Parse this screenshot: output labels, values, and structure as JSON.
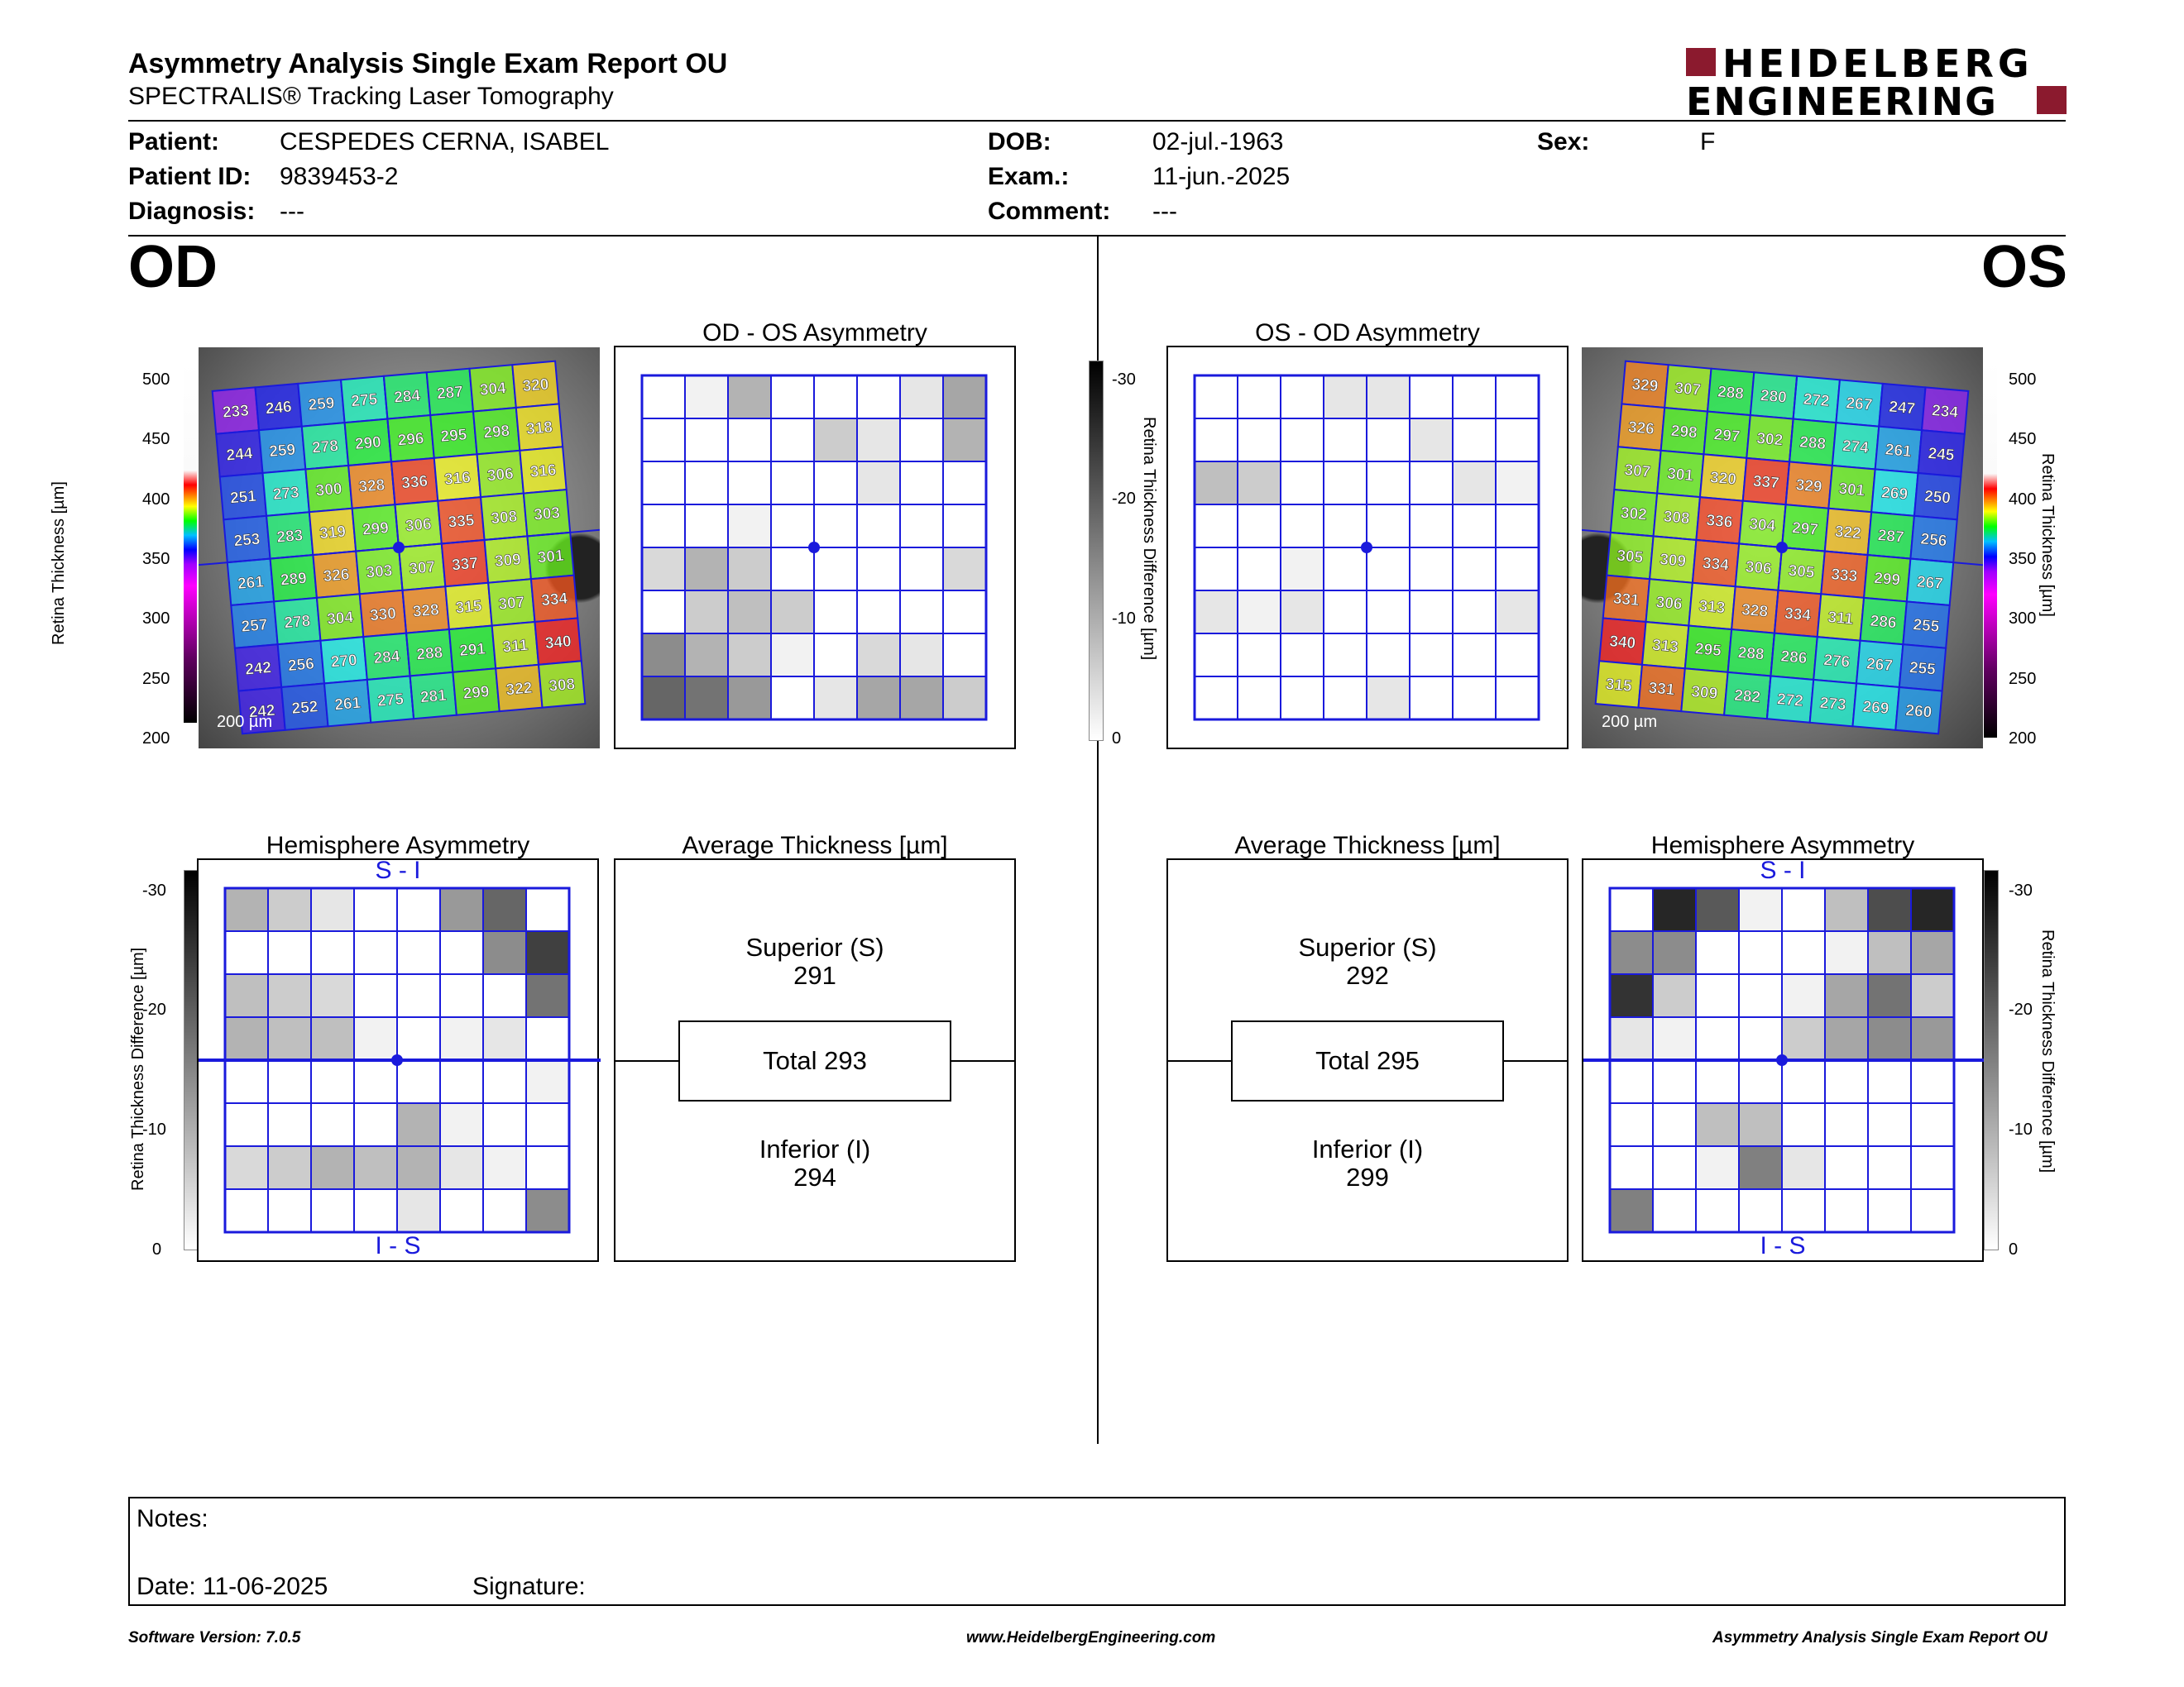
{
  "report": {
    "title": "Asymmetry Analysis Single Exam Report OU",
    "subtitle": "SPECTRALIS® Tracking Laser Tomography",
    "logo_line1": "HEIDELBERG",
    "logo_line2": "ENGINEERING"
  },
  "patient": {
    "patient_label": "Patient:",
    "patient_value": "CESPEDES CERNA, ISABEL",
    "id_label": "Patient ID:",
    "id_value": "9839453-2",
    "diagnosis_label": "Diagnosis:",
    "diagnosis_value": "---",
    "dob_label": "DOB:",
    "dob_value": "02-jul.-1963",
    "exam_label": "Exam.:",
    "exam_value": "11-jun.-2025",
    "comment_label": "Comment:",
    "comment_value": "---",
    "sex_label": "Sex:",
    "sex_value": "F"
  },
  "od": {
    "eye_label": "OD",
    "asym_title": "OD - OS Asymmetry",
    "hemi_title": "Hemisphere Asymmetry",
    "avg_title": "Average Thickness [µm]",
    "superior_label": "Superior (S)",
    "superior_value": "291",
    "total_label": "Total 293",
    "inferior_label": "Inferior (I)",
    "inferior_value": "294",
    "hemi_top": "S - I",
    "hemi_bottom": "I - S",
    "scale_label": "200 µm",
    "thickness_grid": [
      [
        233,
        246,
        259,
        275,
        284,
        287,
        304,
        320
      ],
      [
        244,
        259,
        278,
        290,
        296,
        295,
        298,
        318
      ],
      [
        251,
        273,
        300,
        328,
        336,
        316,
        306,
        316
      ],
      [
        253,
        283,
        319,
        299,
        306,
        335,
        308,
        303
      ],
      [
        261,
        289,
        326,
        303,
        307,
        337,
        309,
        301
      ],
      [
        257,
        278,
        304,
        330,
        328,
        315,
        307,
        334
      ],
      [
        242,
        256,
        270,
        284,
        288,
        291,
        311,
        340
      ],
      [
        242,
        252,
        261,
        275,
        281,
        299,
        322,
        308
      ]
    ],
    "asym_grid": [
      [
        0,
        0.05,
        0.3,
        0,
        0,
        0,
        0.1,
        0.35
      ],
      [
        0,
        0,
        0,
        0,
        0.2,
        0.1,
        0,
        0.3
      ],
      [
        0,
        0,
        0,
        0,
        0,
        0.1,
        0,
        0
      ],
      [
        0,
        0,
        0.05,
        0,
        0,
        0,
        0,
        0
      ],
      [
        0.15,
        0.3,
        0.2,
        0,
        0,
        0,
        0,
        0.15
      ],
      [
        0,
        0.2,
        0.25,
        0.2,
        0,
        0,
        0,
        0
      ],
      [
        0.45,
        0.3,
        0.2,
        0.05,
        0,
        0.15,
        0.1,
        0
      ],
      [
        0.6,
        0.55,
        0.4,
        0,
        0.1,
        0.35,
        0.35,
        0.2
      ]
    ],
    "hemi_grid": [
      [
        0.3,
        0.2,
        0.1,
        0,
        0,
        0.4,
        0.6,
        0
      ],
      [
        0,
        0,
        0,
        0,
        0,
        0,
        0.45,
        0.75
      ],
      [
        0.25,
        0.2,
        0.15,
        0,
        0,
        0,
        0,
        0.55
      ],
      [
        0.3,
        0.25,
        0.25,
        0.05,
        0,
        0.05,
        0.1,
        0
      ],
      [
        0,
        0,
        0,
        0,
        0,
        0,
        0,
        0.05
      ],
      [
        0,
        0,
        0,
        0,
        0.3,
        0.05,
        0,
        0
      ],
      [
        0.15,
        0.2,
        0.3,
        0.25,
        0.3,
        0.1,
        0.05,
        0
      ],
      [
        0,
        0,
        0,
        0,
        0.1,
        0,
        0,
        0.45
      ]
    ]
  },
  "os": {
    "eye_label": "OS",
    "asym_title": "OS - OD Asymmetry",
    "hemi_title": "Hemisphere Asymmetry",
    "avg_title": "Average Thickness [µm]",
    "superior_label": "Superior (S)",
    "superior_value": "292",
    "total_label": "Total 295",
    "inferior_label": "Inferior (I)",
    "inferior_value": "299",
    "hemi_top": "S - I",
    "hemi_bottom": "I - S",
    "scale_label": "200 µm",
    "thickness_grid": [
      [
        329,
        307,
        288,
        280,
        272,
        267,
        247,
        234
      ],
      [
        326,
        298,
        297,
        302,
        288,
        274,
        261,
        245
      ],
      [
        307,
        301,
        320,
        337,
        329,
        301,
        269,
        250
      ],
      [
        302,
        308,
        336,
        304,
        297,
        322,
        287,
        256
      ],
      [
        305,
        309,
        334,
        306,
        305,
        333,
        299,
        267
      ],
      [
        331,
        306,
        313,
        328,
        334,
        311,
        286,
        255
      ],
      [
        340,
        313,
        295,
        288,
        286,
        276,
        267,
        255
      ],
      [
        315,
        331,
        309,
        282,
        272,
        273,
        269,
        260
      ]
    ],
    "asym_grid": [
      [
        0,
        0,
        0,
        0.1,
        0.1,
        0,
        0,
        0
      ],
      [
        0,
        0,
        0,
        0,
        0,
        0.1,
        0,
        0
      ],
      [
        0.25,
        0.2,
        0,
        0,
        0,
        0,
        0.1,
        0.05
      ],
      [
        0,
        0,
        0,
        0,
        0,
        0,
        0,
        0
      ],
      [
        0,
        0,
        0.05,
        0,
        0,
        0,
        0,
        0
      ],
      [
        0.1,
        0.05,
        0.1,
        0,
        0,
        0,
        0,
        0.1
      ],
      [
        0,
        0,
        0,
        0,
        0,
        0,
        0,
        0
      ],
      [
        0,
        0,
        0,
        0,
        0.1,
        0,
        0,
        0
      ]
    ],
    "hemi_grid": [
      [
        0,
        0.85,
        0.65,
        0.05,
        0,
        0.25,
        0.7,
        0.85
      ],
      [
        0.45,
        0.45,
        0,
        0,
        0,
        0.05,
        0.25,
        0.35
      ],
      [
        0.8,
        0.2,
        0,
        0,
        0.05,
        0.35,
        0.55,
        0.2
      ],
      [
        0.1,
        0.05,
        0,
        0,
        0.2,
        0.35,
        0.45,
        0.4
      ],
      [
        0,
        0,
        0,
        0,
        0,
        0,
        0,
        0
      ],
      [
        0,
        0,
        0.25,
        0.25,
        0,
        0,
        0,
        0
      ],
      [
        0,
        0,
        0.05,
        0.5,
        0.1,
        0,
        0,
        0
      ],
      [
        0.5,
        0,
        0,
        0,
        0,
        0,
        0,
        0
      ]
    ]
  },
  "scales": {
    "thickness_axis_label": "Retina Thickness [µm]",
    "thickness_ticks": [
      "500",
      "450",
      "400",
      "350",
      "300",
      "250",
      "200"
    ],
    "diff_axis_label": "Retina Thickness Difference [µm]",
    "diff_ticks": [
      "-30",
      "-20",
      "-10",
      "0"
    ]
  },
  "notes": {
    "notes_label": "Notes:",
    "date_label": "Date: 11-06-2025",
    "signature_label": "Signature:"
  },
  "footer": {
    "left": "Software Version: 7.0.5",
    "center": "www.HeidelbergEngineering.com",
    "right": "Asymmetry Analysis Single Exam Report OU"
  },
  "colors": {
    "grid_blue": "#1a1adc",
    "logo_red": "#8b1a2e"
  }
}
